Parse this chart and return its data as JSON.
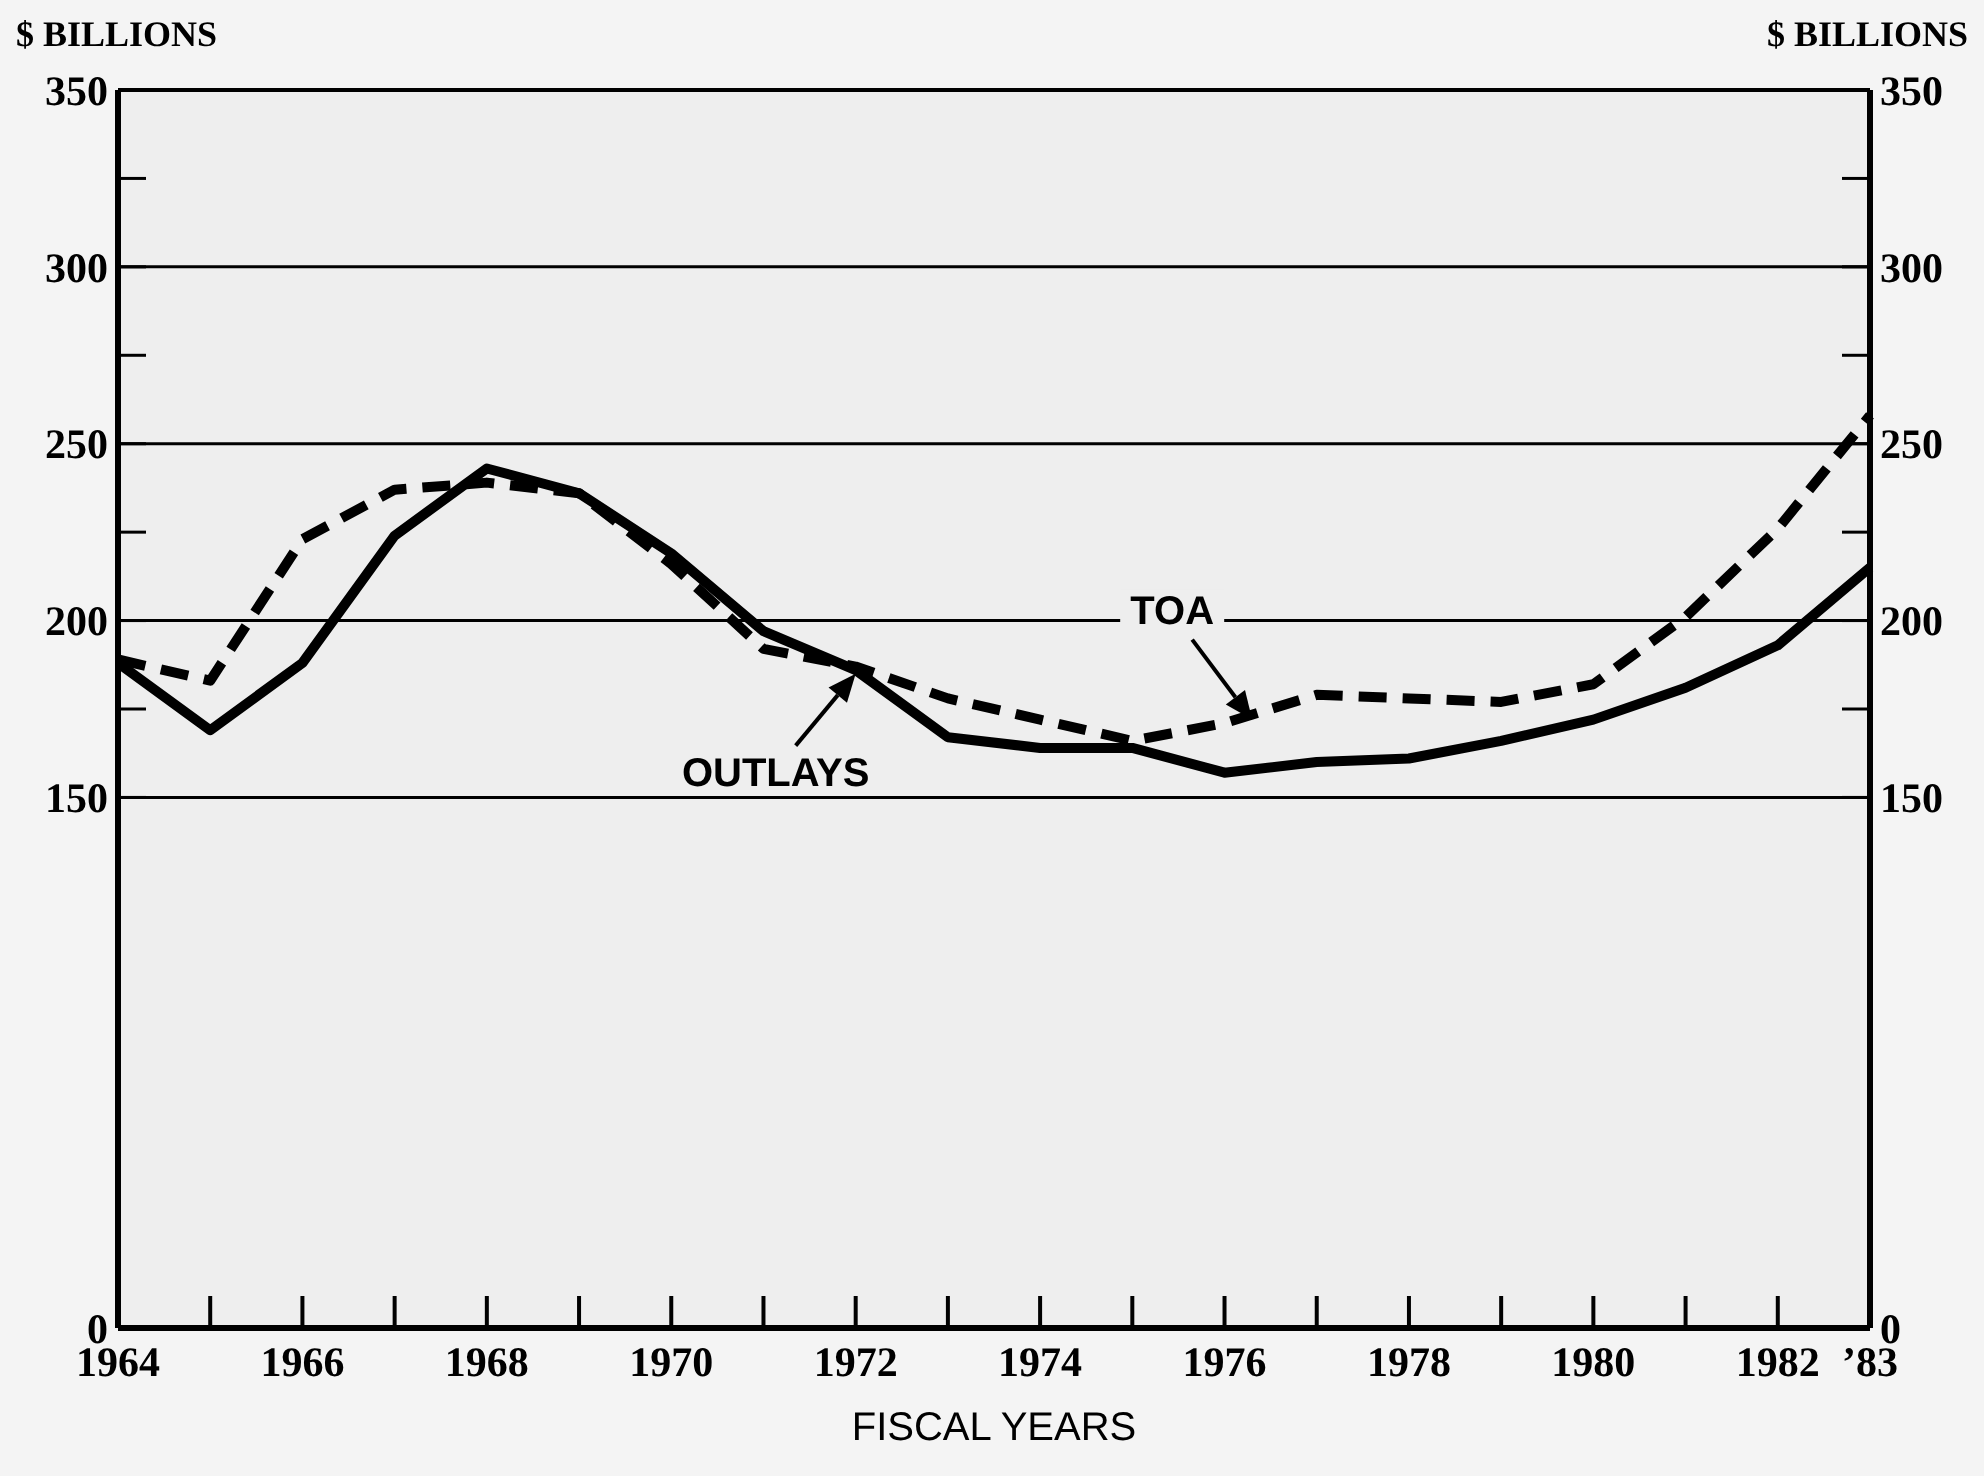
{
  "chart_data": {
    "type": "line",
    "xlabel": "FISCAL YEARS",
    "ylabel": "$ BILLIONS",
    "y2label": "$ BILLIONS",
    "x": [
      1964,
      1965,
      1966,
      1967,
      1968,
      1969,
      1970,
      1971,
      1972,
      1973,
      1974,
      1975,
      1976,
      1977,
      1978,
      1979,
      1980,
      1981,
      1982,
      1983
    ],
    "series": [
      {
        "color": "#000000",
        "line_style": "solid",
        "values": [
          188,
          169,
          188,
          224,
          243,
          236,
          219,
          197,
          186,
          167,
          164,
          164,
          157,
          160,
          161,
          166,
          172,
          181,
          193,
          215
        ]
      },
      {
        "color": "#000000",
        "line_style": "dashed",
        "values": [
          189,
          183,
          223,
          237,
          239,
          236,
          216,
          192,
          187,
          178,
          172,
          166,
          171,
          179,
          178,
          177,
          182,
          201,
          226,
          258
        ]
      }
    ],
    "xlim": [
      1964,
      1983
    ],
    "xticks": [
      1964,
      {
        "value": 1965,
        "label": null
      },
      1966,
      {
        "value": 1967,
        "label": null
      },
      1968,
      {
        "value": 1969,
        "label": null
      },
      1970,
      {
        "value": 1971,
        "label": null
      },
      1972,
      {
        "value": 1973,
        "label": null
      },
      1974,
      {
        "value": 1975,
        "label": null
      },
      1976,
      {
        "value": 1977,
        "label": null
      },
      1978,
      {
        "value": 1979,
        "label": null
      },
      1980,
      {
        "value": 1981,
        "label": null
      },
      1982,
      {
        "value": 1983,
        "label": "’83"
      }
    ],
    "ylim": [
      0,
      350
    ],
    "yticks": [
      0,
      150,
      {
        "value": 175,
        "label": null
      },
      200,
      {
        "value": 225,
        "label": null
      },
      250,
      {
        "value": 275,
        "label": null
      },
      300,
      {
        "value": 325,
        "label": null
      },
      350
    ],
    "y2lim": [
      0,
      350
    ],
    "y2ticks": [
      0,
      150,
      {
        "value": 175,
        "label": null
      },
      200,
      {
        "value": 225,
        "label": null
      },
      250,
      {
        "value": 275,
        "label": null
      },
      300,
      {
        "value": 325,
        "label": null
      },
      350
    ],
    "grid": "y",
    "annotations": [
      {
        "text": "TOA",
        "x": 1976.3,
        "y": 172
      },
      {
        "text": "OUTLAYS",
        "x": 1972,
        "y": 185
      }
    ]
  }
}
